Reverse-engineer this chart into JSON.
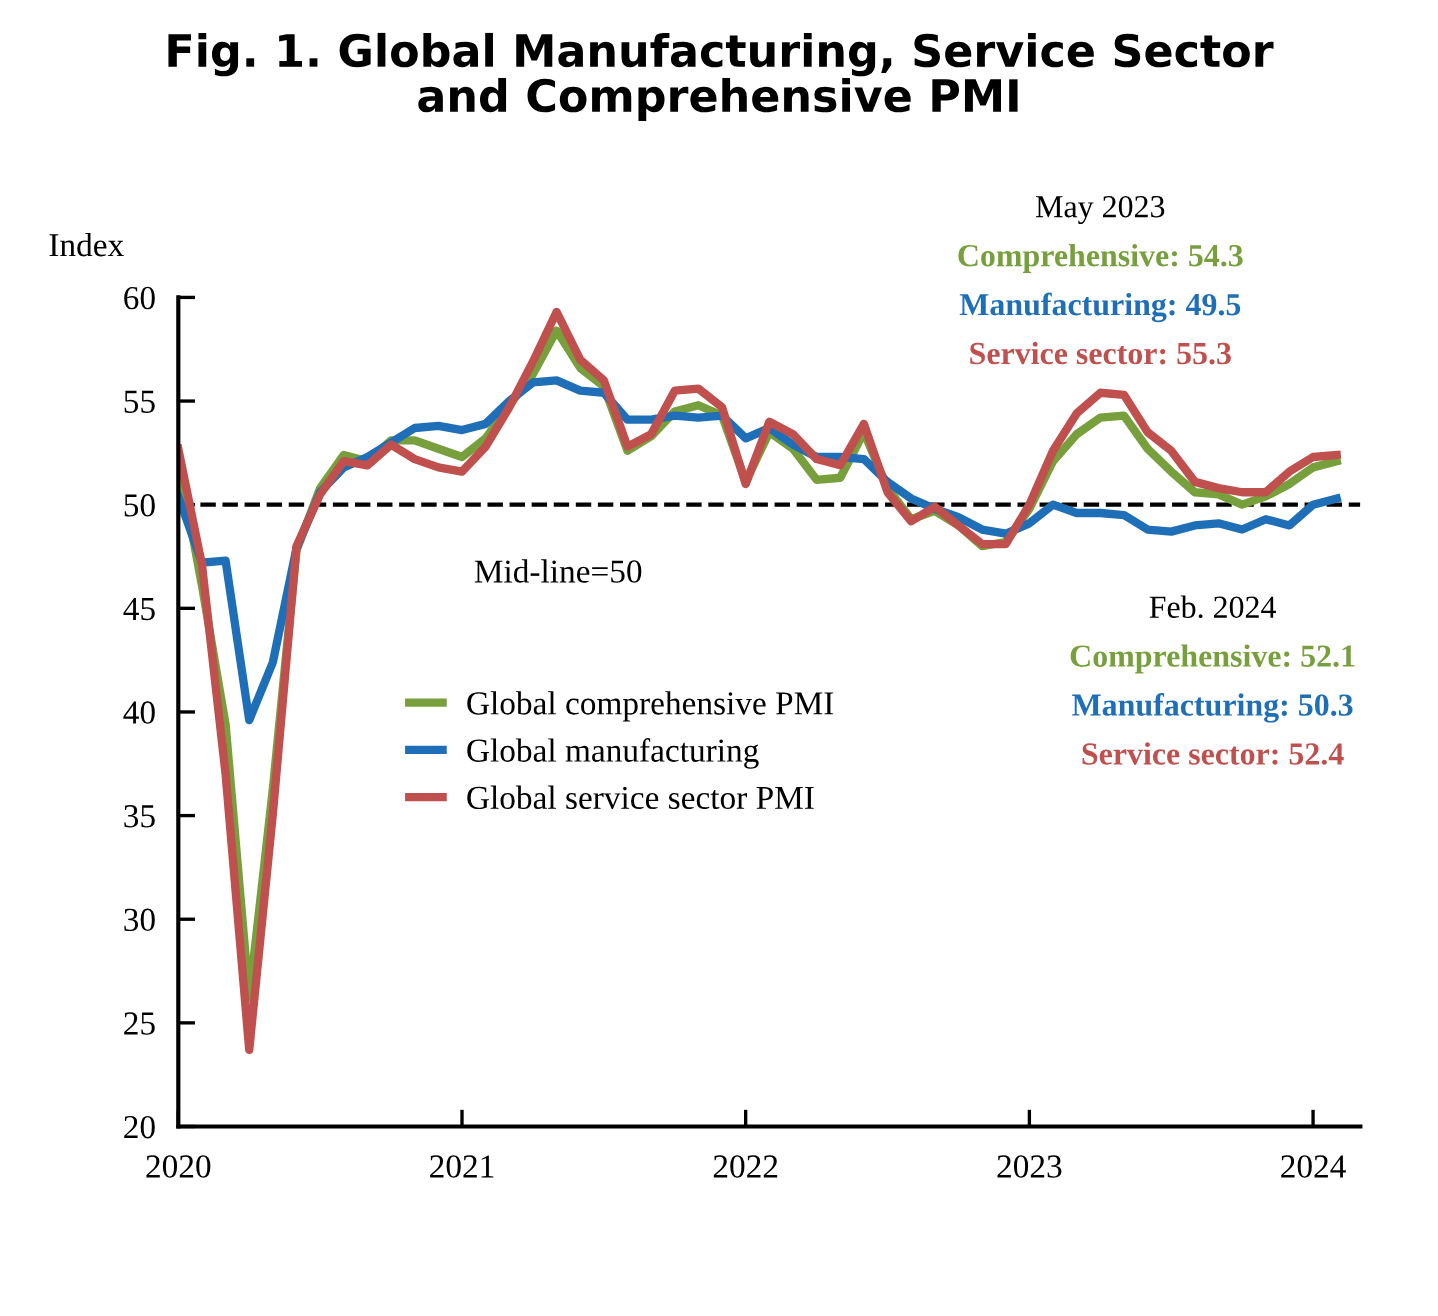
{
  "chart_data": {
    "type": "line",
    "title": "Fig. 1. Global Manufacturing, Service Sector\nand Comprehensive PMI",
    "ylabel": "Index",
    "x": [
      "2020-01",
      "2020-02",
      "2020-03",
      "2020-04",
      "2020-05",
      "2020-06",
      "2020-07",
      "2020-08",
      "2020-09",
      "2020-10",
      "2020-11",
      "2020-12",
      "2021-01",
      "2021-02",
      "2021-03",
      "2021-04",
      "2021-05",
      "2021-06",
      "2021-07",
      "2021-08",
      "2021-09",
      "2021-10",
      "2021-11",
      "2021-12",
      "2022-01",
      "2022-02",
      "2022-03",
      "2022-04",
      "2022-05",
      "2022-06",
      "2022-07",
      "2022-08",
      "2022-09",
      "2022-10",
      "2022-11",
      "2022-12",
      "2023-01",
      "2023-02",
      "2023-03",
      "2023-04",
      "2023-05",
      "2023-06",
      "2023-07",
      "2023-08",
      "2023-09",
      "2023-10",
      "2023-11",
      "2023-12",
      "2024-01",
      "2024-02"
    ],
    "series": [
      {
        "name": "Global comprehensive PMI",
        "color": "#77a03c",
        "values": [
          52.2,
          46.1,
          39.4,
          26.2,
          36.3,
          47.8,
          50.8,
          52.4,
          52.1,
          53.1,
          53.1,
          52.7,
          52.3,
          53.2,
          54.8,
          56.3,
          58.4,
          56.6,
          55.7,
          52.6,
          53.3,
          54.5,
          54.8,
          54.3,
          51.1,
          53.5,
          52.7,
          51.2,
          51.3,
          53.5,
          50.8,
          49.3,
          49.7,
          49.0,
          48.0,
          48.2,
          49.8,
          52.1,
          53.4,
          54.2,
          54.3,
          52.7,
          51.6,
          50.6,
          50.5,
          50.0,
          50.4,
          51.0,
          51.8,
          52.1
        ]
      },
      {
        "name": "Global manufacturing",
        "color": "#1f6fb8",
        "values": [
          50.4,
          47.2,
          47.3,
          39.6,
          42.4,
          47.9,
          50.6,
          51.8,
          52.3,
          53.0,
          53.7,
          53.8,
          53.6,
          53.9,
          55.0,
          55.9,
          56.0,
          55.5,
          55.4,
          54.1,
          54.1,
          54.3,
          54.2,
          54.3,
          53.2,
          53.7,
          52.9,
          52.3,
          52.3,
          52.2,
          51.1,
          50.3,
          49.8,
          49.4,
          48.8,
          48.6,
          49.1,
          50.0,
          49.6,
          49.6,
          49.5,
          48.8,
          48.7,
          49.0,
          49.1,
          48.8,
          49.3,
          49.0,
          50.0,
          50.3
        ]
      },
      {
        "name": "Global service sector PMI",
        "color": "#c0504d",
        "values": [
          52.7,
          47.1,
          37.0,
          23.7,
          35.1,
          48.0,
          50.5,
          52.1,
          51.9,
          52.9,
          52.2,
          51.8,
          51.6,
          52.8,
          54.7,
          56.9,
          59.3,
          57.0,
          56.0,
          52.8,
          53.4,
          55.5,
          55.6,
          54.7,
          51.0,
          54.0,
          53.4,
          52.2,
          51.9,
          53.9,
          50.6,
          49.2,
          49.9,
          49.0,
          48.1,
          48.1,
          50.0,
          52.6,
          54.4,
          55.4,
          55.3,
          53.5,
          52.6,
          51.1,
          50.8,
          50.6,
          50.6,
          51.6,
          52.3,
          52.4
        ]
      }
    ],
    "xlim": [
      "2020-01",
      "2024-03"
    ],
    "xticks": [
      "2020",
      "2021",
      "2022",
      "2023",
      "2024"
    ],
    "ylim": [
      20,
      60
    ],
    "yticks": [
      20,
      25,
      30,
      35,
      40,
      45,
      50,
      55,
      60
    ],
    "ref_lines": [
      {
        "axis": "y",
        "value": 50,
        "label": "Mid-line=50",
        "color": "#000000",
        "line_style": "dashed"
      }
    ],
    "annotations": [
      "May 2023",
      "Comprehensive: 54.3",
      "Manufacturing: 49.5",
      "Service sector: 55.3",
      "Feb. 2024",
      "Comprehensive: 52.1",
      "Manufacturing: 50.3",
      "Service sector: 52.4"
    ],
    "legend": "center left",
    "grid": false,
    "line_style": "solid",
    "marker": "none"
  }
}
